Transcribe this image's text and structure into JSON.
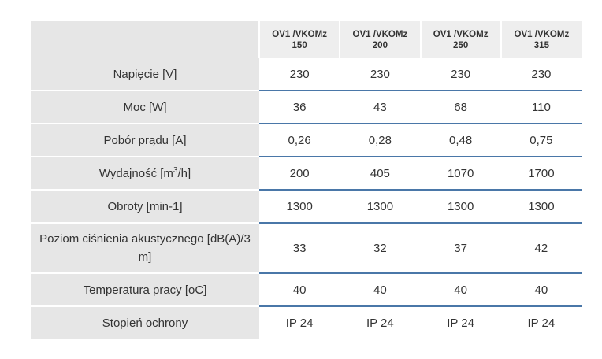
{
  "table": {
    "headers": [
      "",
      "OV1 /VKOMz 150",
      "OV1 /VKOMz 200",
      "OV1 /VKOMz 250",
      "OV1 /VKOMz 315"
    ],
    "header_lines": [
      [
        "OV1 /VKOMz",
        "150"
      ],
      [
        "OV1 /VKOMz",
        "200"
      ],
      [
        "OV1 /VKOMz",
        "250"
      ],
      [
        "OV1 /VKOMz",
        "315"
      ]
    ],
    "rows": [
      {
        "label": "Napięcie [V]",
        "values": [
          "230",
          "230",
          "230",
          "230"
        ]
      },
      {
        "label": "Moc [W]",
        "values": [
          "36",
          "43",
          "68",
          "110"
        ]
      },
      {
        "label": "Pobór prądu [A]",
        "values": [
          "0,26",
          "0,28",
          "0,48",
          "0,75"
        ]
      },
      {
        "label_pre": "Wydajność [m",
        "label_sup": "3",
        "label_post": "/h]",
        "values": [
          "200",
          "405",
          "1070",
          "1700"
        ]
      },
      {
        "label": "Obroty [min-1]",
        "values": [
          "1300",
          "1300",
          "1300",
          "1300"
        ]
      },
      {
        "label": "Poziom ciśnienia akustycznego [dB(A)/3 m]",
        "values": [
          "33",
          "32",
          "37",
          "42"
        ]
      },
      {
        "label": "Temperatura pracy [oC]",
        "values": [
          "40",
          "40",
          "40",
          "40"
        ]
      },
      {
        "label": "Stopień ochrony",
        "values": [
          "IP 24",
          "IP 24",
          "IP 24",
          "IP 24"
        ]
      }
    ]
  },
  "colors": {
    "label_bg": "#e6e6e6",
    "header_bg": "#eeeeee",
    "row_rule": "#4a77a8",
    "text": "#333333"
  }
}
